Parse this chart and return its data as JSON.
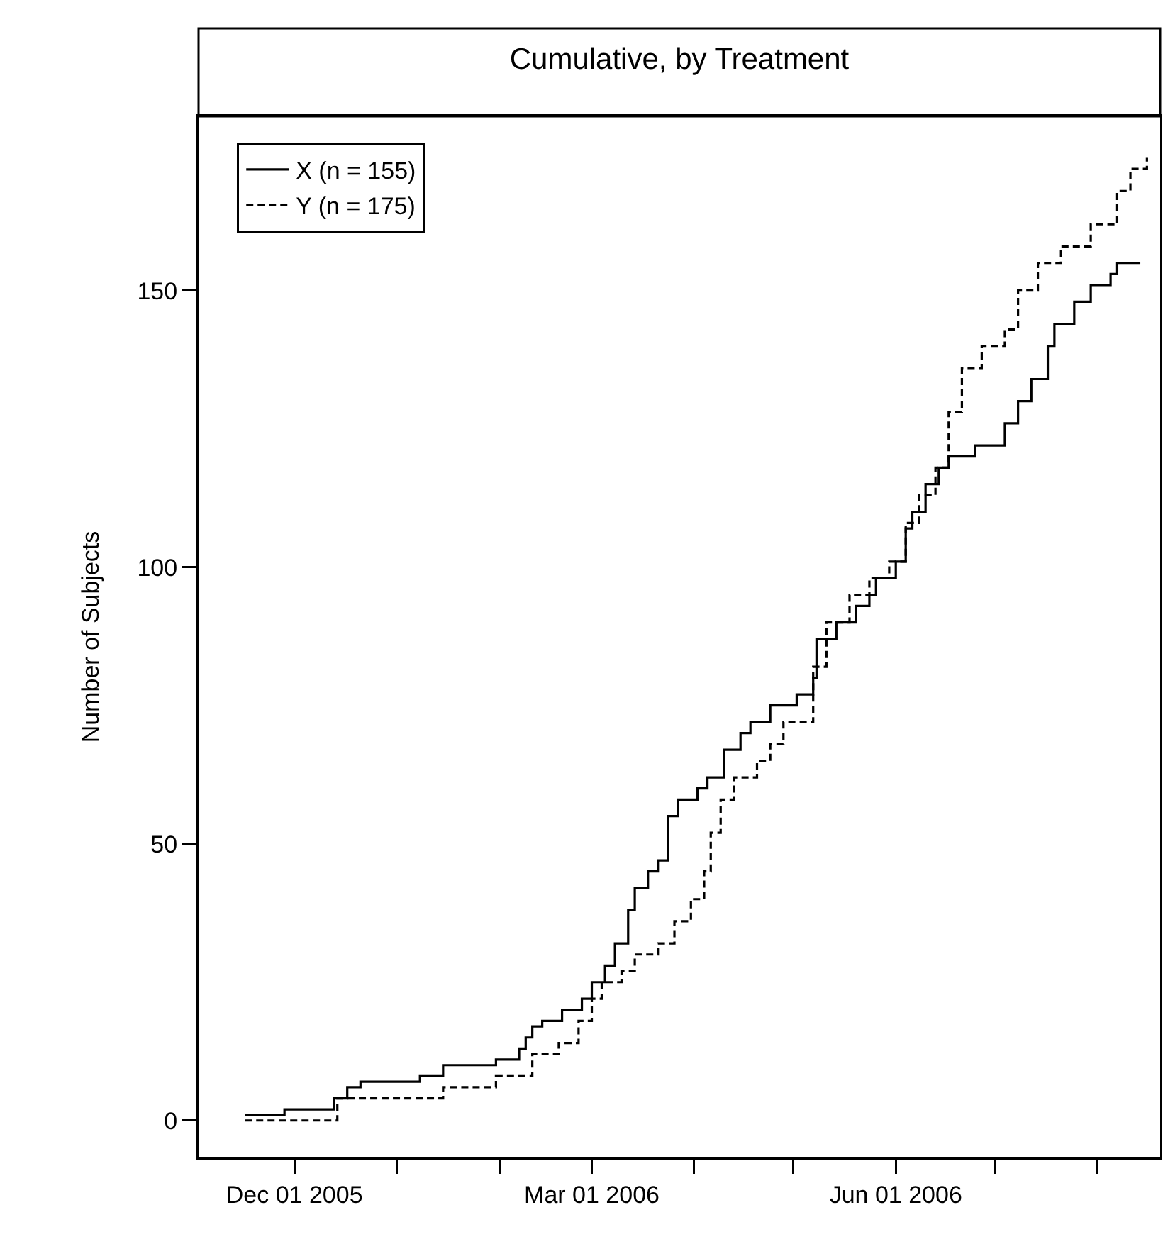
{
  "chart_data": {
    "type": "step",
    "title": "Cumulative, by Treatment",
    "ylabel": "Number of Subjects",
    "xlim": [
      "2005-11-02",
      "2006-08-20"
    ],
    "ylim": [
      -6.7,
      181.5
    ],
    "xticks": [
      {
        "value": "2005-12-01",
        "label": "Dec 01 2005"
      },
      {
        "value": "2006-01-01",
        "label": null
      },
      {
        "value": "2006-02-01",
        "label": null
      },
      {
        "value": "2006-03-01",
        "label": "Mar 01 2006"
      },
      {
        "value": "2006-04-01",
        "label": null
      },
      {
        "value": "2006-05-01",
        "label": null
      },
      {
        "value": "2006-06-01",
        "label": "Jun 01 2006"
      },
      {
        "value": "2006-07-01",
        "label": null
      },
      {
        "value": "2006-08-01",
        "label": null
      }
    ],
    "yticks": [
      0,
      50,
      100,
      150
    ],
    "grid": false,
    "legend": "top left",
    "marker": "none",
    "series": [
      {
        "name": "X (n = 155)",
        "color": "#000000",
        "line_style": "solid",
        "x": [
          "2005-11-16",
          "2005-11-28",
          "2005-12-13",
          "2005-12-17",
          "2005-12-21",
          "2006-01-08",
          "2006-01-15",
          "2006-01-31",
          "2006-02-07",
          "2006-02-09",
          "2006-02-11",
          "2006-02-14",
          "2006-02-20",
          "2006-02-26",
          "2006-03-01",
          "2006-03-05",
          "2006-03-08",
          "2006-03-12",
          "2006-03-14",
          "2006-03-18",
          "2006-03-21",
          "2006-03-24",
          "2006-03-27",
          "2006-04-02",
          "2006-04-05",
          "2006-04-10",
          "2006-04-15",
          "2006-04-18",
          "2006-04-24",
          "2006-05-02",
          "2006-05-07",
          "2006-05-08",
          "2006-05-14",
          "2006-05-20",
          "2006-05-24",
          "2006-05-26",
          "2006-06-01",
          "2006-06-04",
          "2006-06-06",
          "2006-06-10",
          "2006-06-14",
          "2006-06-17",
          "2006-06-25",
          "2006-07-04",
          "2006-07-08",
          "2006-07-12",
          "2006-07-17",
          "2006-07-19",
          "2006-07-25",
          "2006-07-30",
          "2006-08-05",
          "2006-08-07",
          "2006-08-14"
        ],
        "values": [
          1,
          2,
          4,
          6,
          7,
          8,
          10,
          11,
          13,
          15,
          17,
          18,
          20,
          22,
          25,
          28,
          32,
          38,
          42,
          45,
          47,
          55,
          58,
          60,
          62,
          67,
          70,
          72,
          75,
          77,
          80,
          87,
          90,
          93,
          95,
          98,
          101,
          107,
          110,
          115,
          118,
          120,
          122,
          126,
          130,
          134,
          140,
          144,
          148,
          151,
          153,
          155,
          155
        ]
      },
      {
        "name": "Y (n = 175)",
        "color": "#000000",
        "line_style": "dashed",
        "x": [
          "2005-11-16",
          "2005-12-14",
          "2006-01-15",
          "2006-01-31",
          "2006-02-11",
          "2006-02-19",
          "2006-02-25",
          "2006-03-01",
          "2006-03-04",
          "2006-03-10",
          "2006-03-14",
          "2006-03-21",
          "2006-03-26",
          "2006-03-31",
          "2006-04-04",
          "2006-04-06",
          "2006-04-09",
          "2006-04-13",
          "2006-04-20",
          "2006-04-24",
          "2006-04-28",
          "2006-05-07",
          "2006-05-11",
          "2006-05-18",
          "2006-05-24",
          "2006-05-30",
          "2006-06-04",
          "2006-06-08",
          "2006-06-13",
          "2006-06-17",
          "2006-06-21",
          "2006-06-27",
          "2006-07-04",
          "2006-07-08",
          "2006-07-14",
          "2006-07-21",
          "2006-07-30",
          "2006-08-07",
          "2006-08-11",
          "2006-08-16"
        ],
        "values": [
          0,
          4,
          6,
          8,
          12,
          14,
          18,
          22,
          25,
          27,
          30,
          32,
          36,
          40,
          45,
          52,
          58,
          62,
          65,
          68,
          72,
          82,
          90,
          95,
          98,
          101,
          108,
          113,
          118,
          128,
          136,
          140,
          143,
          150,
          155,
          158,
          162,
          168,
          172,
          174
        ]
      }
    ]
  }
}
